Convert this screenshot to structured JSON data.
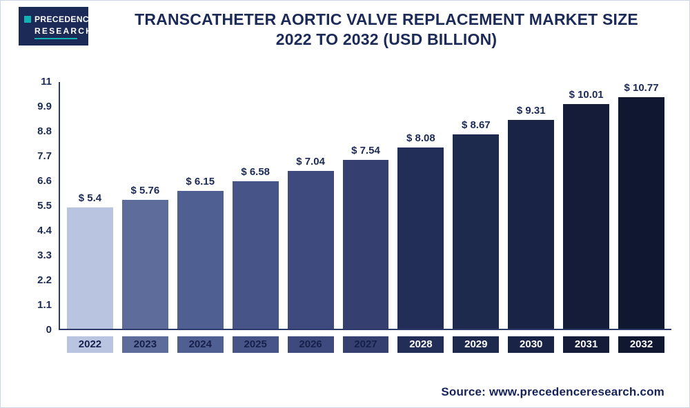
{
  "header": {
    "logo": {
      "line1": "PRECEDENCE",
      "line2": "RESEARCH"
    },
    "title_line1": "TRANSCATHETER AORTIC VALVE REPLACEMENT MARKET SIZE",
    "title_line2": "2022 TO 2032 (USD BILLION)"
  },
  "chart_data": {
    "type": "bar",
    "title": "Transcatheter Aortic Valve Replacement Market Size 2022 to 2032 (USD Billion)",
    "categories": [
      "2022",
      "2023",
      "2024",
      "2025",
      "2026",
      "2027",
      "2028",
      "2029",
      "2030",
      "2031",
      "2032"
    ],
    "values": [
      5.4,
      5.76,
      6.15,
      6.58,
      7.04,
      7.54,
      8.08,
      8.67,
      9.31,
      10.01,
      10.77
    ],
    "value_labels": [
      "$ 5.4",
      "$ 5.76",
      "$ 6.15",
      "$ 6.58",
      "$ 7.04",
      "$ 7.54",
      "$ 8.08",
      "$ 8.67",
      "$ 9.31",
      "$ 10.01",
      "$ 10.77"
    ],
    "y_ticks": [
      "11",
      "9.9",
      "8.8",
      "7.7",
      "6.6",
      "5.5",
      "4.4",
      "3.3",
      "2.2",
      "1.1",
      "0"
    ],
    "ylim": [
      0,
      11
    ],
    "xlabel": "",
    "ylabel": "",
    "grid": false,
    "legend": "none",
    "bar_colors": [
      "#b9c4e1",
      "#5d6c9b",
      "#505f92",
      "#475488",
      "#3e4a7d",
      "#364070",
      "#222e57",
      "#1e294e",
      "#192345",
      "#141c3a",
      "#101730"
    ],
    "label_text_colors": [
      "#16204a",
      "#16204a",
      "#16204a",
      "#16204a",
      "#16204a",
      "#16204a",
      "#ffffff",
      "#ffffff",
      "#ffffff",
      "#ffffff",
      "#ffffff"
    ]
  },
  "footer": {
    "source": "Source: www.precedenceresearch.com"
  }
}
